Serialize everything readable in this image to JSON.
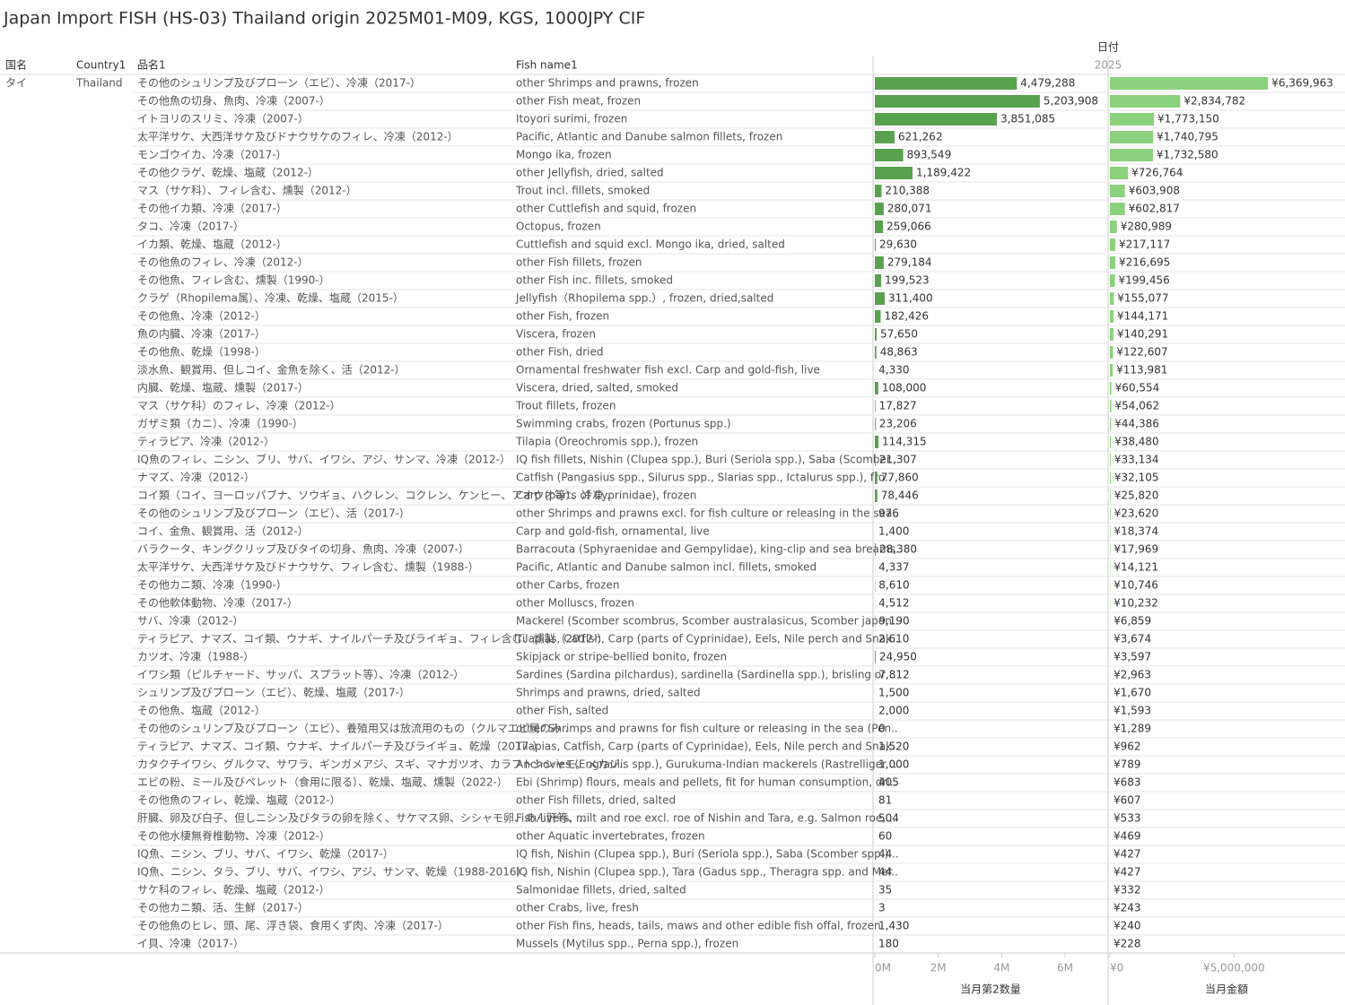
{
  "title": "Japan Import FISH (HS-03) Thailand origin 2025M01-M09, KGS, 1000JPY CIF",
  "headers": {
    "country_jp": "国名",
    "country": "Country1",
    "name_jp": "品名1",
    "name_en": "Fish name1",
    "date": "日付",
    "year": "2025"
  },
  "group": {
    "country_jp": "タイ",
    "country": "Thailand"
  },
  "rows": [
    [
      "その他のシュリンプ及びプローン（エビ）、冷凍（2017-）",
      "other Shrimps and prawns, frozen"
    ],
    [
      "その他魚の切身、魚肉、冷凍（2007-）",
      "other Fish meat, frozen"
    ],
    [
      "イトヨリのスリミ、冷凍（2007-）",
      "Itoyori surimi, frozen"
    ],
    [
      "太平洋サケ、大西洋サケ及びドナウサケのフィレ、冷凍（2012-）",
      "Pacific, Atlantic and Danube salmon fillets, frozen"
    ],
    [
      "モンゴウイカ、冷凍（2017-）",
      "Mongo ika, frozen"
    ],
    [
      "その他クラゲ、乾燥、塩蔵（2012-）",
      "other Jellyfish, dried, salted"
    ],
    [
      "マス（サケ科）、フィレ含む、燻製（2012-）",
      "Trout incl. fillets, smoked"
    ],
    [
      "その他イカ類、冷凍（2017-）",
      "other Cuttlefish and squid, frozen"
    ],
    [
      "タコ、冷凍（2017-）",
      "Octopus, frozen"
    ],
    [
      "イカ類、乾燥、塩蔵（2012-）",
      "Cuttlefish and squid excl. Mongo ika, dried, salted"
    ],
    [
      "その他魚のフィレ、冷凍（2012-）",
      "other Fish fillets, frozen"
    ],
    [
      "その他魚、フィレ含む、燻製（1990-）",
      "other Fish inc. fillets, smoked"
    ],
    [
      "クラゲ（Rhopilema属）、冷凍、乾燥、塩蔵（2015-）",
      "Jellyfish（Rhopilema spp.）, frozen, dried,salted"
    ],
    [
      "その他魚、冷凍（2012-）",
      "other Fish, frozen"
    ],
    [
      "魚の内臓、冷凍（2017-）",
      "Viscera, frozen"
    ],
    [
      "その他魚、乾燥（1998-）",
      "other Fish, dried"
    ],
    [
      "淡水魚、観賞用、但しコイ、金魚を除く、活（2012-）",
      "Ornamental freshwater fish excl. Carp and gold-fish, live"
    ],
    [
      "内臓、乾燥、塩蔵、燻製（2017-）",
      "Viscera, dried, salted, smoked"
    ],
    [
      "マス（サケ科）のフィレ、冷凍（2012-）",
      "Trout fillets, frozen"
    ],
    [
      "ガザミ類（カニ）、冷凍（1990-）",
      "Swimming crabs, frozen (Portunus spp.)"
    ],
    [
      "ティラピア、冷凍（2012-）",
      "Tilapia (Oreochromis spp.), frozen"
    ],
    [
      "IQ魚のフィレ、ニシン、ブリ、サバ、イワシ、アジ、サンマ、冷凍（2012-）",
      "IQ fish fillets, Nishin (Clupea spp.), Buri (Seriola spp.), Saba (Scomber.."
    ],
    [
      "ナマズ、冷凍（2012-）",
      "Catfish (Pangasius spp., Silurus spp., Slarias spp., Ictalurus spp.), fro.."
    ],
    [
      "コイ類（コイ、ヨーロッパブナ、ソウギョ、ハクレン、コクレン、ケンヒー、アオウオ等）、冷凍..",
      "Carp (parts of Cyprinidae), frozen"
    ],
    [
      "その他のシュリンプ及びプローン（エビ）、活（2017-）",
      "other Shrimps and prawns excl. for fish culture or releasing in the sea.."
    ],
    [
      "コイ、金魚、観賞用、活（2012-）",
      "Carp and gold-fish, ornamental, live"
    ],
    [
      "バラクータ、キングクリップ及びタイの切身、魚肉、冷凍（2007-）",
      "Barracouta (Sphyraenidae and Gempylidae), king-clip and sea breams.."
    ],
    [
      "太平洋サケ、大西洋サケ及びドナウサケ、フィレ含む、燻製（1988-）",
      "Pacific, Atlantic and Danube salmon incl. fillets, smoked"
    ],
    [
      "その他カニ類、冷凍（1990-）",
      "other Carbs, frozen"
    ],
    [
      "その他軟体動物、冷凍（2017-）",
      "other Molluscs, frozen"
    ],
    [
      "サバ、冷凍（2012-）",
      "Mackerel (Scomber scombrus, Scomber australasicus, Scomber japon.."
    ],
    [
      "ティラピア、ナマズ、コイ類、ウナギ、ナイルパーチ及びライギョ、フィレ含む、燻製（2012-）",
      "Tilapias, Catfish, Carp (parts of Cyprinidae), Eels, Nile perch and Snak.."
    ],
    [
      "カツオ、冷凍（1988-）",
      "Skipjack or stripe-bellied bonito, frozen"
    ],
    [
      "イワシ類（ピルチャード、サッパ、スプラット等）、冷凍（2012-）",
      "Sardines (Sardina pilchardus), sardinella (Sardinella spp.), brisling or .."
    ],
    [
      "シュリンプ及びプローン（エビ）、乾燥、塩蔵（2017-）",
      "Shrimps and prawns, dried, salted"
    ],
    [
      "その他魚、塩蔵（2012-）",
      "other Fish, salted"
    ],
    [
      "その他のシュリンプ及びプローン（エビ）、養殖用又は放流用のもの（クルマエビ属のみ..",
      "other Shrimps and prawns for fish culture or releasing in the sea (Pen.."
    ],
    [
      "ティラピア、ナマズ、コイ類、ウナギ、ナイルパーチ及びライギョ、乾燥（2017-）",
      "Tilapias, Catfish, Carp (parts of Cyprinidae), Eels, Nile perch and Snak.."
    ],
    [
      "カタクチイワシ、グルクマ、サワラ、ギンガメアジ、スギ、マナガツオ、カラフトシシャモ、メカジ..",
      "Anchovies (Engraulis spp.), Gurukuma-Indian mackerels (Rastrelliger .."
    ],
    [
      "エビの粉、ミール及びペレット（食用に限る）、乾燥、塩蔵、燻製（2022-）",
      "Ebi (Shrimp) flours, meals and pellets, fit for human consumption, dri.."
    ],
    [
      "その他魚のフィレ、乾燥、塩蔵（2012-）",
      "other Fish fillets, dried, salted"
    ],
    [
      "肝臓、卵及び白子、但しニシン及びタラの卵を除く、サケマス卵、シシャモ卵、あん肝等、..",
      "Fish livers, milt and roe excl. roe of Nishin and Tara, e.g. Salmon roe, .."
    ],
    [
      "その他水棲無脊椎動物、冷凍（2012-）",
      "other Aquatic invertebrates, frozen"
    ],
    [
      "IQ魚、ニシン、ブリ、サバ、イワシ、乾燥（2017-）",
      "IQ fish, Nishin (Clupea spp.), Buri (Seriola spp.), Saba (Scomber spp.) .."
    ],
    [
      "IQ魚、ニシン、タラ、ブリ、サバ、イワシ、アジ、サンマ、乾燥（1988-2016）",
      "IQ fish, Nishin (Clupea spp.), Tara (Gadus spp., Theragra spp. and Mer.."
    ],
    [
      "サケ科のフィレ、乾燥、塩蔵（2012-）",
      "Salmonidae fillets, dried, salted"
    ],
    [
      "その他カニ類、活、生鮮（2017-）",
      "other Crabs, live, fresh"
    ],
    [
      "その他魚のヒレ、頭、尾、浮き袋、食用くず肉、冷凍（2017-）",
      "other Fish fins, heads, tails, maws and other edible fish offal, frozen"
    ],
    [
      "イ貝、冷凍（2017-）",
      "Mussels (Mytilus spp., Perna spp.), frozen"
    ]
  ],
  "chart_data": [
    {
      "type": "bar",
      "x_label": "当月第2数量",
      "color": "#59a14f",
      "values": [
        4479288,
        5203908,
        3851085,
        621262,
        893549,
        1189422,
        210388,
        280071,
        259066,
        29630,
        279184,
        199523,
        311400,
        182426,
        57650,
        48863,
        4330,
        108000,
        17827,
        23206,
        114315,
        21307,
        77860,
        78446,
        976,
        1400,
        28380,
        4337,
        8610,
        4512,
        9190,
        2610,
        24950,
        7812,
        1500,
        2000,
        0,
        1520,
        1000,
        405,
        81,
        504,
        60,
        44,
        44,
        35,
        3,
        1430,
        180
      ],
      "value_labels": [
        "4,479,288",
        "5,203,908",
        "3,851,085",
        "621,262",
        "893,549",
        "1,189,422",
        "210,388",
        "280,071",
        "259,066",
        "29,630",
        "279,184",
        "199,523",
        "311,400",
        "182,426",
        "57,650",
        "48,863",
        "4,330",
        "108,000",
        "17,827",
        "23,206",
        "114,315",
        "21,307",
        "77,860",
        "78,446",
        "976",
        "1,400",
        "28,380",
        "4,337",
        "8,610",
        "4,512",
        "9,190",
        "2,610",
        "24,950",
        "7,812",
        "1,500",
        "2,000",
        "0",
        "1,520",
        "1,000",
        "405",
        "81",
        "504",
        "60",
        "44",
        "44",
        "35",
        "3",
        "1,430",
        "180"
      ],
      "xlim": [
        0,
        7300000
      ],
      "xticks": [
        {
          "value": 0,
          "label": "0M"
        },
        {
          "value": 2000000,
          "label": "2M"
        },
        {
          "value": 4000000,
          "label": "4M"
        },
        {
          "value": 6000000,
          "label": "6M"
        }
      ]
    },
    {
      "type": "bar",
      "x_label": "当月金額",
      "color": "#8cd17d",
      "values": [
        6369963,
        2834782,
        1773150,
        1740795,
        1732580,
        726764,
        603908,
        602817,
        280989,
        217117,
        216695,
        199456,
        155077,
        144171,
        140291,
        122607,
        113981,
        60554,
        54062,
        44386,
        38480,
        33134,
        32105,
        25820,
        23620,
        18374,
        17969,
        14121,
        10746,
        10232,
        6859,
        3674,
        3597,
        2963,
        1670,
        1593,
        1289,
        962,
        789,
        683,
        607,
        533,
        469,
        427,
        427,
        332,
        243,
        240,
        228
      ],
      "value_labels": [
        "¥6,369,963",
        "¥2,834,782",
        "¥1,773,150",
        "¥1,740,795",
        "¥1,732,580",
        "¥726,764",
        "¥603,908",
        "¥602,817",
        "¥280,989",
        "¥217,117",
        "¥216,695",
        "¥199,456",
        "¥155,077",
        "¥144,171",
        "¥140,291",
        "¥122,607",
        "¥113,981",
        "¥60,554",
        "¥54,062",
        "¥44,386",
        "¥38,480",
        "¥33,134",
        "¥32,105",
        "¥25,820",
        "¥23,620",
        "¥18,374",
        "¥17,969",
        "¥14,121",
        "¥10,746",
        "¥10,232",
        "¥6,859",
        "¥3,674",
        "¥3,597",
        "¥2,963",
        "¥1,670",
        "¥1,593",
        "¥1,289",
        "¥962",
        "¥789",
        "¥683",
        "¥607",
        "¥533",
        "¥469",
        "¥427",
        "¥427",
        "¥332",
        "¥243",
        "¥240",
        "¥228"
      ],
      "xlim": [
        0,
        9400000
      ],
      "xticks": [
        {
          "value": 0,
          "label": "¥0"
        },
        {
          "value": 5000000,
          "label": "¥5,000,000"
        }
      ]
    }
  ]
}
